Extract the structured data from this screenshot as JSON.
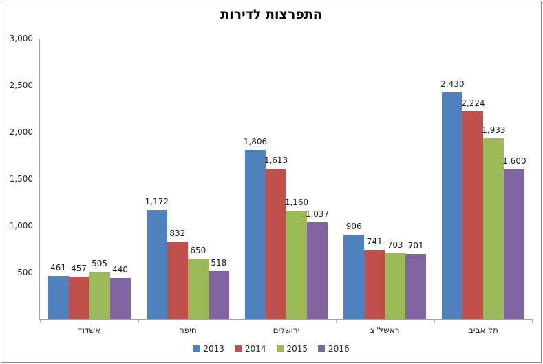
{
  "title": "התפרצות לדירות",
  "chart_data": {
    "type": "bar",
    "title": "התפרצות לדירות",
    "categories": [
      "אשדוד",
      "חיפה",
      "ירושלים",
      "ראשל\"צ",
      "תל אביב"
    ],
    "series": [
      {
        "name": "2013",
        "color": "#4F81BD",
        "values": [
          461,
          1172,
          1806,
          906,
          2430
        ]
      },
      {
        "name": "2014",
        "color": "#C0504D",
        "values": [
          457,
          832,
          1613,
          741,
          2224
        ]
      },
      {
        "name": "2015",
        "color": "#9BBB59",
        "values": [
          505,
          650,
          1160,
          703,
          1933
        ]
      },
      {
        "name": "2016",
        "color": "#8064A2",
        "values": [
          440,
          518,
          1037,
          701,
          1600
        ]
      }
    ],
    "ylim": [
      0,
      3000
    ],
    "y_tick_values": [
      500,
      1000,
      1500,
      2000,
      2500,
      3000
    ],
    "y_tick_labels": [
      "500",
      "1,000",
      "1,500",
      "2,000",
      "2,500",
      "3,000"
    ],
    "grid": false,
    "data_labels": true,
    "number_format": "#,##0",
    "legend_position": "bottom",
    "legend_entries": [
      "2013",
      "2014",
      "2015",
      "2016"
    ]
  },
  "colors": {
    "axis_line": "#A6A6A6",
    "chart_border": "#8C8C8C",
    "text": "#262626",
    "background": "#FFFFFF"
  }
}
